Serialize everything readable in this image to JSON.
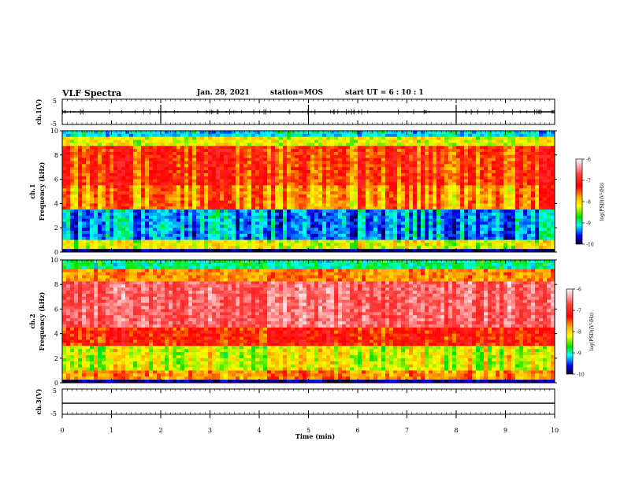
{
  "header": {
    "title": "VLF Spectra",
    "date": "Jan. 28, 2021",
    "station": "station=MOS",
    "start": "start  UT  =  6 : 10 : 1"
  },
  "chart_data": [
    {
      "type": "line",
      "panel": "ch1-waveform",
      "ylabel": "ch.1(V)",
      "ylim": [
        -5,
        5
      ],
      "y_ticks": [
        "5",
        "-5"
      ],
      "xlim": [
        0,
        10
      ]
    },
    {
      "type": "heatmap",
      "panel": "ch1-spectrogram",
      "ylabel": "ch.1\nFrequency (kHz)",
      "ylim": [
        0,
        10
      ],
      "y_ticks": [
        "0",
        "2",
        "4",
        "6",
        "8",
        "10"
      ],
      "xlim": [
        0,
        10
      ],
      "colorbar": {
        "label": "log(PSD)(V²/Hz)",
        "range": [
          -10,
          -6
        ],
        "ticks": [
          "-6",
          "-7",
          "-8",
          "-9",
          "-10"
        ]
      }
    },
    {
      "type": "heatmap",
      "panel": "ch2-spectrogram",
      "ylabel": "ch.2\nFrequency (kHz)",
      "ylim": [
        0,
        10
      ],
      "y_ticks": [
        "0",
        "2",
        "4",
        "6",
        "8",
        "10"
      ],
      "xlim": [
        0,
        10
      ],
      "colorbar": {
        "label": "log(PSD)(V²/Hz)",
        "range": [
          -10,
          -6
        ],
        "ticks": [
          "-6",
          "-7",
          "-8",
          "-9",
          "-10"
        ]
      }
    },
    {
      "type": "line",
      "panel": "ch3-waveform",
      "ylabel": "ch.3(V)",
      "ylim": [
        -5,
        5
      ],
      "y_ticks": [
        "5",
        "-5"
      ],
      "xlim": [
        0,
        10
      ],
      "xlabel": "Time (min)",
      "x_ticks": [
        "0",
        "1",
        "2",
        "3",
        "4",
        "5",
        "6",
        "7",
        "8",
        "9",
        "10"
      ]
    }
  ]
}
